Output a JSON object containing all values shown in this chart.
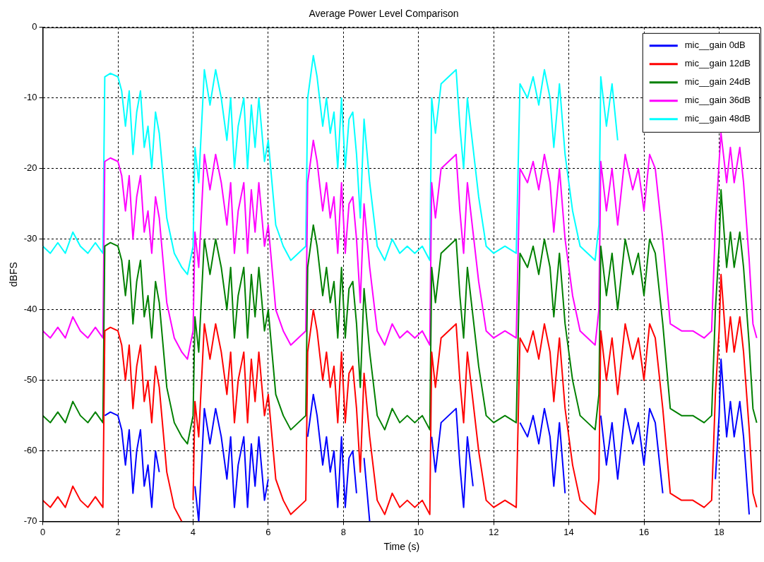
{
  "chart_data": {
    "type": "line",
    "title": "Average Power Level Comparison",
    "xlabel": "Time (s)",
    "ylabel": "dBFS",
    "x": [
      0,
      0.2,
      0.4,
      0.6,
      0.8,
      1.0,
      1.2,
      1.4,
      1.6,
      1.65,
      1.8,
      2.0,
      2.1,
      2.2,
      2.3,
      2.4,
      2.5,
      2.6,
      2.7,
      2.8,
      2.9,
      3.0,
      3.1,
      3.3,
      3.5,
      3.7,
      3.85,
      4.0,
      4.05,
      4.15,
      4.3,
      4.45,
      4.6,
      4.75,
      4.9,
      5.0,
      5.1,
      5.2,
      5.35,
      5.45,
      5.55,
      5.65,
      5.75,
      5.9,
      6.0,
      6.2,
      6.4,
      6.6,
      6.8,
      7.0,
      7.05,
      7.2,
      7.3,
      7.45,
      7.55,
      7.65,
      7.75,
      7.85,
      7.95,
      8.05,
      8.15,
      8.25,
      8.35,
      8.45,
      8.55,
      8.7,
      8.9,
      9.1,
      9.3,
      9.5,
      9.7,
      9.9,
      10.1,
      10.3,
      10.35,
      10.45,
      10.6,
      10.8,
      11.0,
      11.1,
      11.2,
      11.3,
      11.45,
      11.6,
      11.8,
      12.0,
      12.3,
      12.6,
      12.7,
      12.9,
      13.05,
      13.2,
      13.35,
      13.5,
      13.6,
      13.75,
      13.9,
      14.1,
      14.3,
      14.5,
      14.7,
      14.8,
      14.85,
      15.0,
      15.15,
      15.3,
      15.5,
      15.7,
      15.85,
      16.0,
      16.15,
      16.3,
      16.5,
      16.7,
      17.0,
      17.3,
      17.6,
      17.8,
      17.9,
      18.0,
      18.05,
      18.2,
      18.3,
      18.4,
      18.55,
      18.65,
      18.8,
      18.9,
      19.0
    ],
    "series": [
      {
        "name": "mic__gain 0dB",
        "color": "#0000ff",
        "values": [
          null,
          null,
          null,
          null,
          null,
          null,
          null,
          null,
          null,
          -55,
          -54.5,
          -55,
          -57,
          -62,
          -57,
          -66,
          -60,
          -57,
          -65,
          -62,
          -68,
          -60,
          -63,
          null,
          null,
          null,
          null,
          null,
          -65,
          -70,
          -54,
          -59,
          -54,
          -58,
          -64,
          -58,
          -68,
          -62,
          -58,
          -68,
          -59,
          -65,
          -58,
          -67,
          -64,
          null,
          null,
          null,
          null,
          null,
          -58,
          -52,
          -55,
          -62,
          -58,
          -63,
          -60,
          -68,
          -58,
          -68,
          -61,
          -60,
          -66,
          null,
          -61,
          -70,
          null,
          null,
          null,
          null,
          null,
          null,
          null,
          null,
          -58,
          -63,
          -56,
          -55,
          -54,
          -62,
          -68,
          -58,
          -65,
          null,
          null,
          null,
          null,
          null,
          -56,
          -58,
          -55,
          -59,
          -54,
          -58,
          -65,
          -56,
          -66,
          null,
          null,
          null,
          null,
          null,
          -55,
          -62,
          -56,
          -64,
          -54,
          -59,
          -56,
          -62,
          -54,
          -56,
          -66,
          null,
          null,
          null,
          null,
          null,
          -64,
          -55,
          -47,
          -58,
          -53,
          -58,
          -53,
          -58,
          -69,
          null,
          null
        ]
      },
      {
        "name": "mic__gain 12dB",
        "color": "#ff0000",
        "values": [
          -67,
          -68,
          -66.5,
          -68,
          -65,
          -67,
          -68,
          -66.5,
          -68,
          -43,
          -42.5,
          -43,
          -45,
          -50,
          -45,
          -54,
          -48,
          -45,
          -53,
          -50,
          -56,
          -48,
          -51,
          -63,
          -68,
          -70,
          null,
          -67,
          -53,
          -58,
          -42,
          -47,
          -42,
          -46,
          -52,
          -46,
          -56,
          -50,
          -46,
          -56,
          -47,
          -53,
          -46,
          -55,
          -52,
          -64,
          -67,
          -69,
          -68,
          -67,
          -46,
          -40,
          -43,
          -50,
          -46,
          -51,
          -48,
          -56,
          -46,
          -56,
          -49,
          -48,
          -54,
          -63,
          -49,
          -58,
          -67,
          -69,
          -66,
          -68,
          -67,
          -68,
          -67,
          -69,
          -46,
          -51,
          -44,
          -43,
          -42,
          -50,
          -56,
          -46,
          -53,
          -60,
          -67,
          -68,
          -67,
          -68,
          -44,
          -46,
          -43,
          -47,
          -42,
          -46,
          -53,
          -44,
          -54,
          -62,
          -67,
          -68,
          -69,
          -64,
          -43,
          -50,
          -44,
          -52,
          -42,
          -47,
          -44,
          -50,
          -42,
          -44,
          -54,
          -66,
          -67,
          -67,
          -68,
          -67,
          -52,
          -43,
          -35,
          -46,
          -41,
          -46,
          -41,
          -46,
          -57,
          -66,
          -68
        ]
      },
      {
        "name": "mic__gain 24dB",
        "color": "#008000",
        "values": [
          -55,
          -56,
          -54.5,
          -56,
          -53,
          -55,
          -56,
          -54.5,
          -56,
          -31,
          -30.5,
          -31,
          -33,
          -38,
          -33,
          -42,
          -36,
          -33,
          -41,
          -38,
          -44,
          -36,
          -39,
          -51,
          -56,
          -58,
          -59,
          -55,
          -41,
          -46,
          -30,
          -35,
          -30,
          -34,
          -40,
          -34,
          -44,
          -38,
          -34,
          -44,
          -35,
          -41,
          -34,
          -43,
          -40,
          -52,
          -55,
          -57,
          -56,
          -55,
          -34,
          -28,
          -31,
          -38,
          -34,
          -39,
          -36,
          -44,
          -34,
          -44,
          -37,
          -36,
          -42,
          -51,
          -37,
          -46,
          -55,
          -57,
          -54,
          -56,
          -55,
          -56,
          -55,
          -57,
          -34,
          -39,
          -32,
          -31,
          -30,
          -38,
          -44,
          -34,
          -41,
          -48,
          -55,
          -56,
          -55,
          -56,
          -32,
          -34,
          -31,
          -35,
          -30,
          -34,
          -41,
          -32,
          -42,
          -50,
          -55,
          -56,
          -57,
          -52,
          -31,
          -38,
          -32,
          -40,
          -30,
          -35,
          -32,
          -38,
          -30,
          -32,
          -42,
          -54,
          -55,
          -55,
          -56,
          -55,
          -40,
          -31,
          -23,
          -34,
          -29,
          -34,
          -29,
          -34,
          -45,
          -54,
          -56
        ]
      },
      {
        "name": "mic__gain 36dB",
        "color": "#ff00ff",
        "values": [
          -43,
          -44,
          -42.5,
          -44,
          -41,
          -43,
          -44,
          -42.5,
          -44,
          -19,
          -18.5,
          -19,
          -21,
          -26,
          -21,
          -30,
          -24,
          -21,
          -29,
          -26,
          -32,
          -24,
          -27,
          -39,
          -44,
          -46,
          -47,
          -43,
          -29,
          -34,
          -18,
          -23,
          -18,
          -22,
          -28,
          -22,
          -32,
          -26,
          -22,
          -32,
          -23,
          -29,
          -22,
          -31,
          -28,
          -40,
          -43,
          -45,
          -44,
          -43,
          -22,
          -16,
          -19,
          -26,
          -22,
          -27,
          -24,
          -32,
          -22,
          -32,
          -25,
          -24,
          -30,
          -39,
          -25,
          -34,
          -43,
          -45,
          -42,
          -44,
          -43,
          -44,
          -43,
          -45,
          -22,
          -27,
          -20,
          -19,
          -18,
          -26,
          -32,
          -22,
          -29,
          -36,
          -43,
          -44,
          -43,
          -44,
          -20,
          -22,
          -19,
          -23,
          -18,
          -22,
          -29,
          -20,
          -30,
          -38,
          -43,
          -44,
          -45,
          -40,
          -19,
          -26,
          -20,
          -28,
          -18,
          -23,
          -20,
          -26,
          -18,
          -20,
          -30,
          -42,
          -43,
          -43,
          -44,
          -43,
          -28,
          -19,
          -15,
          -22,
          -17,
          -22,
          -17,
          -22,
          -33,
          -42,
          -44
        ]
      },
      {
        "name": "mic__gain 48dB",
        "color": "#00ffff",
        "values": [
          -31,
          -32,
          -30.5,
          -32,
          -29,
          -31,
          -32,
          -30.5,
          -32,
          -7,
          -6.5,
          -7,
          -9,
          -14,
          -9,
          -18,
          -12,
          -9,
          -17,
          -14,
          -20,
          -12,
          -15,
          -27,
          -32,
          -34,
          -35,
          -31,
          -17,
          -22,
          -6,
          -11,
          -6,
          -10,
          -16,
          -10,
          -20,
          -14,
          -10,
          -20,
          -11,
          -17,
          -10,
          -19,
          -16,
          -28,
          -31,
          -33,
          -32,
          -31,
          -10,
          -4,
          -7,
          -14,
          -10,
          -15,
          -12,
          -20,
          -10,
          -20,
          -13,
          -12,
          -18,
          -27,
          -13,
          -22,
          -31,
          -33,
          -30,
          -32,
          -31,
          -32,
          -31,
          -33,
          -10,
          -15,
          -8,
          -7,
          -6,
          -14,
          -20,
          -10,
          -17,
          -24,
          -31,
          -32,
          -31,
          -32,
          -8,
          -10,
          -7,
          -11,
          -6,
          -10,
          -17,
          -8,
          -18,
          -26,
          -31,
          -32,
          -33,
          -28,
          -7,
          -14,
          -8,
          -16,
          null,
          null,
          null,
          null,
          null,
          null,
          null,
          null,
          null,
          null,
          null,
          null,
          null,
          null,
          null,
          null,
          null,
          null,
          null,
          null,
          null,
          null,
          null
        ]
      }
    ],
    "xlim": [
      0,
      19.1
    ],
    "xticks": [
      0,
      2,
      4,
      6,
      8,
      10,
      12,
      14,
      16,
      18
    ],
    "ylim": [
      -70,
      0
    ],
    "yticks": [
      -70,
      -60,
      -50,
      -40,
      -30,
      -20,
      -10,
      0
    ],
    "grid": true,
    "legend": "top right",
    "marker": "none",
    "line_style": "solid"
  }
}
